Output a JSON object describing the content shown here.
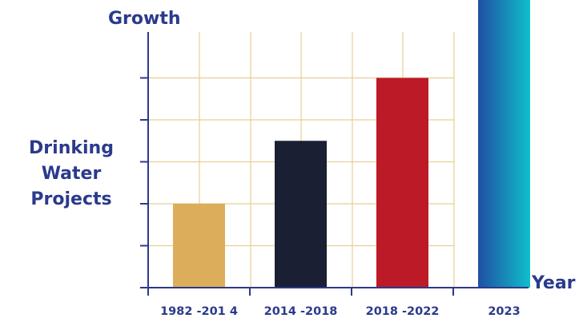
{
  "chart_data": {
    "type": "bar",
    "title": "",
    "ylabel_top": "Growth",
    "ylabel_lines": [
      "Drinking",
      "Water",
      "Projects"
    ],
    "xlabel": "Year",
    "categories": [
      "1982 -201 4",
      "2014 -2018",
      "2018 -2022",
      "2023"
    ],
    "values": [
      2,
      3.5,
      5,
      7
    ],
    "ylim": [
      0,
      7
    ],
    "grid": true,
    "legend": "none",
    "bar_colors": [
      "#dcae5c",
      "#1b1f33",
      "#bc1a27",
      "gradient:#1f4fa3-#10bfcc"
    ]
  },
  "colors": {
    "text": "#2b3a8c",
    "grid": "#e8cf94",
    "axis": "#2b3a8c"
  }
}
